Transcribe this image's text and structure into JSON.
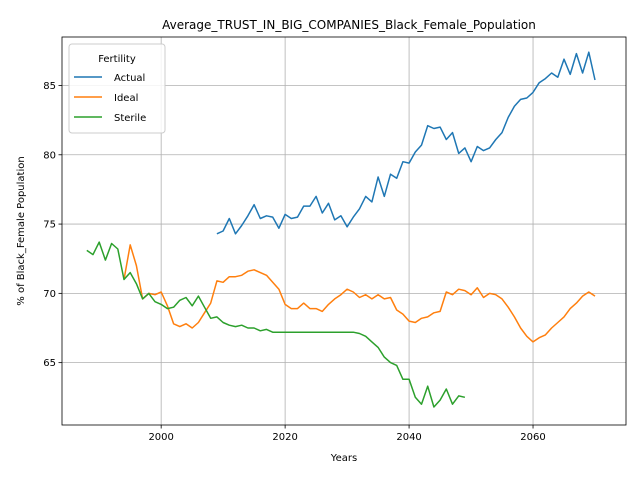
{
  "chart_data": {
    "type": "line",
    "title": "Average_TRUST_IN_BIG_COMPANIES_Black_Female_Population",
    "xlabel": "Years",
    "ylabel": "% of Black_Female Population",
    "xlim": [
      1984,
      2075
    ],
    "ylim": [
      60.5,
      88.5
    ],
    "xticks": [
      2000,
      2020,
      2040,
      2060
    ],
    "yticks": [
      65,
      70,
      75,
      80,
      85
    ],
    "grid": true,
    "legend": {
      "title": "Fertility",
      "location": "top-left"
    },
    "colors": {
      "Actual": "#1f77b4",
      "Ideal": "#ff7f0e",
      "Sterile": "#2ca02c"
    },
    "series": [
      {
        "name": "Actual",
        "x": [
          2009,
          2010,
          2011,
          2012,
          2013,
          2014,
          2015,
          2016,
          2017,
          2018,
          2019,
          2020,
          2021,
          2022,
          2023,
          2024,
          2025,
          2026,
          2027,
          2028,
          2029,
          2030,
          2031,
          2032,
          2033,
          2034,
          2035,
          2036,
          2037,
          2038,
          2039,
          2040,
          2041,
          2042,
          2043,
          2044,
          2045,
          2046,
          2047,
          2048,
          2049,
          2050,
          2051,
          2052,
          2053,
          2054,
          2055,
          2056,
          2057,
          2058,
          2059,
          2060,
          2061,
          2062,
          2063,
          2064,
          2065,
          2066,
          2067,
          2068,
          2069,
          2070
        ],
        "y": [
          74.3,
          74.5,
          75.4,
          74.3,
          74.9,
          75.6,
          76.4,
          75.4,
          75.6,
          75.5,
          74.7,
          75.7,
          75.4,
          75.5,
          76.3,
          76.3,
          77.0,
          75.8,
          76.5,
          75.3,
          75.6,
          74.8,
          75.5,
          76.1,
          77.0,
          76.6,
          78.4,
          77.0,
          78.6,
          78.3,
          79.5,
          79.4,
          80.2,
          80.7,
          82.1,
          81.9,
          82.0,
          81.1,
          81.6,
          80.1,
          80.5,
          79.5,
          80.6,
          80.3,
          80.5,
          81.1,
          81.6,
          82.7,
          83.5,
          84.0,
          84.1,
          84.5,
          85.2,
          85.5,
          85.9,
          85.6,
          86.9,
          85.8,
          87.3,
          85.9,
          87.4,
          85.4
        ]
      },
      {
        "name": "Ideal",
        "x": [
          1994,
          1995,
          1996,
          1997,
          1998,
          1999,
          2000,
          2001,
          2002,
          2003,
          2004,
          2005,
          2006,
          2007,
          2008,
          2009,
          2010,
          2011,
          2012,
          2013,
          2014,
          2015,
          2016,
          2017,
          2018,
          2019,
          2020,
          2021,
          2022,
          2023,
          2024,
          2025,
          2026,
          2027,
          2028,
          2029,
          2030,
          2031,
          2032,
          2033,
          2034,
          2035,
          2036,
          2037,
          2038,
          2039,
          2040,
          2041,
          2042,
          2043,
          2044,
          2045,
          2046,
          2047,
          2048,
          2049,
          2050,
          2051,
          2052,
          2053,
          2054,
          2055,
          2056,
          2057,
          2058,
          2059,
          2060,
          2061,
          2062,
          2063,
          2064,
          2065,
          2066,
          2067,
          2068,
          2069,
          2070
        ],
        "y": [
          71.0,
          73.5,
          72.0,
          69.6,
          70.0,
          69.9,
          70.1,
          69.1,
          67.8,
          67.6,
          67.8,
          67.5,
          67.9,
          68.6,
          69.3,
          70.9,
          70.8,
          71.2,
          71.2,
          71.3,
          71.6,
          71.7,
          71.5,
          71.3,
          70.8,
          70.3,
          69.2,
          68.9,
          68.9,
          69.3,
          68.9,
          68.9,
          68.7,
          69.2,
          69.6,
          69.9,
          70.3,
          70.1,
          69.7,
          69.9,
          69.6,
          69.9,
          69.6,
          69.7,
          68.8,
          68.5,
          68.0,
          67.9,
          68.2,
          68.3,
          68.6,
          68.7,
          70.1,
          69.9,
          70.3,
          70.2,
          69.9,
          70.4,
          69.7,
          70.0,
          69.9,
          69.6,
          69.0,
          68.3,
          67.5,
          66.9,
          66.5,
          66.8,
          67.0,
          67.5,
          67.9,
          68.3,
          68.9,
          69.3,
          69.8,
          70.1,
          69.8
        ]
      },
      {
        "name": "Sterile",
        "x": [
          1988,
          1989,
          1990,
          1991,
          1992,
          1993,
          1994,
          1995,
          1996,
          1997,
          1998,
          1999,
          2000,
          2001,
          2002,
          2003,
          2004,
          2005,
          2006,
          2007,
          2008,
          2009,
          2010,
          2011,
          2012,
          2013,
          2014,
          2015,
          2016,
          2017,
          2018,
          2019,
          2020,
          2021,
          2022,
          2023,
          2024,
          2025,
          2026,
          2027,
          2028,
          2029,
          2030,
          2031,
          2032,
          2033,
          2034,
          2035,
          2036,
          2037,
          2038,
          2039,
          2040,
          2041,
          2042,
          2043,
          2044,
          2045,
          2046,
          2047,
          2048,
          2049
        ],
        "y": [
          73.1,
          72.8,
          73.7,
          72.4,
          73.6,
          73.2,
          71.0,
          71.5,
          70.7,
          69.6,
          70.0,
          69.4,
          69.2,
          68.9,
          69.0,
          69.5,
          69.7,
          69.1,
          69.8,
          69.0,
          68.2,
          68.3,
          67.9,
          67.7,
          67.6,
          67.7,
          67.5,
          67.5,
          67.3,
          67.4,
          67.2,
          67.2,
          67.2,
          67.2,
          67.2,
          67.2,
          67.2,
          67.2,
          67.2,
          67.2,
          67.2,
          67.2,
          67.2,
          67.2,
          67.1,
          66.9,
          66.5,
          66.1,
          65.4,
          65.0,
          64.8,
          63.8,
          63.8,
          62.5,
          62.0,
          63.3,
          61.8,
          62.3,
          63.1,
          62.0,
          62.6,
          62.5
        ]
      }
    ]
  }
}
